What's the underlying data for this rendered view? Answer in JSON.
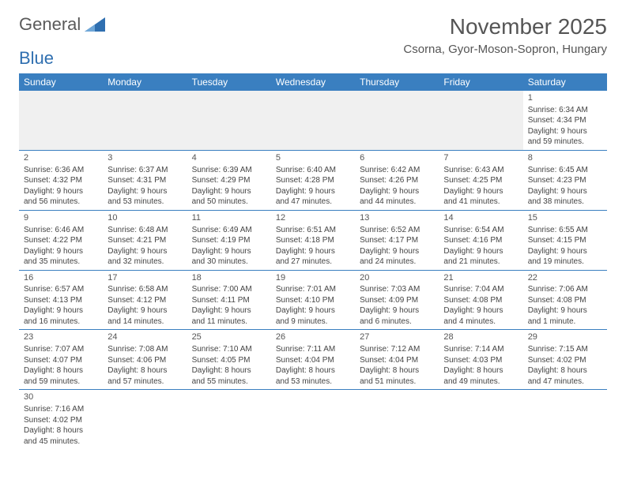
{
  "logo": {
    "word1": "General",
    "word2": "Blue",
    "triangle_color": "#2f6fb0"
  },
  "header": {
    "title": "November 2025",
    "location": "Csorna, Gyor-Moson-Sopron, Hungary"
  },
  "colors": {
    "header_bar": "#3a7fc0",
    "row_divider": "#3a7fc0",
    "empty_bg": "#f0f0f0"
  },
  "day_names": [
    "Sunday",
    "Monday",
    "Tuesday",
    "Wednesday",
    "Thursday",
    "Friday",
    "Saturday"
  ],
  "weeks": [
    [
      null,
      null,
      null,
      null,
      null,
      null,
      {
        "n": "1",
        "sunrise": "Sunrise: 6:34 AM",
        "sunset": "Sunset: 4:34 PM",
        "daylight1": "Daylight: 9 hours",
        "daylight2": "and 59 minutes."
      }
    ],
    [
      {
        "n": "2",
        "sunrise": "Sunrise: 6:36 AM",
        "sunset": "Sunset: 4:32 PM",
        "daylight1": "Daylight: 9 hours",
        "daylight2": "and 56 minutes."
      },
      {
        "n": "3",
        "sunrise": "Sunrise: 6:37 AM",
        "sunset": "Sunset: 4:31 PM",
        "daylight1": "Daylight: 9 hours",
        "daylight2": "and 53 minutes."
      },
      {
        "n": "4",
        "sunrise": "Sunrise: 6:39 AM",
        "sunset": "Sunset: 4:29 PM",
        "daylight1": "Daylight: 9 hours",
        "daylight2": "and 50 minutes."
      },
      {
        "n": "5",
        "sunrise": "Sunrise: 6:40 AM",
        "sunset": "Sunset: 4:28 PM",
        "daylight1": "Daylight: 9 hours",
        "daylight2": "and 47 minutes."
      },
      {
        "n": "6",
        "sunrise": "Sunrise: 6:42 AM",
        "sunset": "Sunset: 4:26 PM",
        "daylight1": "Daylight: 9 hours",
        "daylight2": "and 44 minutes."
      },
      {
        "n": "7",
        "sunrise": "Sunrise: 6:43 AM",
        "sunset": "Sunset: 4:25 PM",
        "daylight1": "Daylight: 9 hours",
        "daylight2": "and 41 minutes."
      },
      {
        "n": "8",
        "sunrise": "Sunrise: 6:45 AM",
        "sunset": "Sunset: 4:23 PM",
        "daylight1": "Daylight: 9 hours",
        "daylight2": "and 38 minutes."
      }
    ],
    [
      {
        "n": "9",
        "sunrise": "Sunrise: 6:46 AM",
        "sunset": "Sunset: 4:22 PM",
        "daylight1": "Daylight: 9 hours",
        "daylight2": "and 35 minutes."
      },
      {
        "n": "10",
        "sunrise": "Sunrise: 6:48 AM",
        "sunset": "Sunset: 4:21 PM",
        "daylight1": "Daylight: 9 hours",
        "daylight2": "and 32 minutes."
      },
      {
        "n": "11",
        "sunrise": "Sunrise: 6:49 AM",
        "sunset": "Sunset: 4:19 PM",
        "daylight1": "Daylight: 9 hours",
        "daylight2": "and 30 minutes."
      },
      {
        "n": "12",
        "sunrise": "Sunrise: 6:51 AM",
        "sunset": "Sunset: 4:18 PM",
        "daylight1": "Daylight: 9 hours",
        "daylight2": "and 27 minutes."
      },
      {
        "n": "13",
        "sunrise": "Sunrise: 6:52 AM",
        "sunset": "Sunset: 4:17 PM",
        "daylight1": "Daylight: 9 hours",
        "daylight2": "and 24 minutes."
      },
      {
        "n": "14",
        "sunrise": "Sunrise: 6:54 AM",
        "sunset": "Sunset: 4:16 PM",
        "daylight1": "Daylight: 9 hours",
        "daylight2": "and 21 minutes."
      },
      {
        "n": "15",
        "sunrise": "Sunrise: 6:55 AM",
        "sunset": "Sunset: 4:15 PM",
        "daylight1": "Daylight: 9 hours",
        "daylight2": "and 19 minutes."
      }
    ],
    [
      {
        "n": "16",
        "sunrise": "Sunrise: 6:57 AM",
        "sunset": "Sunset: 4:13 PM",
        "daylight1": "Daylight: 9 hours",
        "daylight2": "and 16 minutes."
      },
      {
        "n": "17",
        "sunrise": "Sunrise: 6:58 AM",
        "sunset": "Sunset: 4:12 PM",
        "daylight1": "Daylight: 9 hours",
        "daylight2": "and 14 minutes."
      },
      {
        "n": "18",
        "sunrise": "Sunrise: 7:00 AM",
        "sunset": "Sunset: 4:11 PM",
        "daylight1": "Daylight: 9 hours",
        "daylight2": "and 11 minutes."
      },
      {
        "n": "19",
        "sunrise": "Sunrise: 7:01 AM",
        "sunset": "Sunset: 4:10 PM",
        "daylight1": "Daylight: 9 hours",
        "daylight2": "and 9 minutes."
      },
      {
        "n": "20",
        "sunrise": "Sunrise: 7:03 AM",
        "sunset": "Sunset: 4:09 PM",
        "daylight1": "Daylight: 9 hours",
        "daylight2": "and 6 minutes."
      },
      {
        "n": "21",
        "sunrise": "Sunrise: 7:04 AM",
        "sunset": "Sunset: 4:08 PM",
        "daylight1": "Daylight: 9 hours",
        "daylight2": "and 4 minutes."
      },
      {
        "n": "22",
        "sunrise": "Sunrise: 7:06 AM",
        "sunset": "Sunset: 4:08 PM",
        "daylight1": "Daylight: 9 hours",
        "daylight2": "and 1 minute."
      }
    ],
    [
      {
        "n": "23",
        "sunrise": "Sunrise: 7:07 AM",
        "sunset": "Sunset: 4:07 PM",
        "daylight1": "Daylight: 8 hours",
        "daylight2": "and 59 minutes."
      },
      {
        "n": "24",
        "sunrise": "Sunrise: 7:08 AM",
        "sunset": "Sunset: 4:06 PM",
        "daylight1": "Daylight: 8 hours",
        "daylight2": "and 57 minutes."
      },
      {
        "n": "25",
        "sunrise": "Sunrise: 7:10 AM",
        "sunset": "Sunset: 4:05 PM",
        "daylight1": "Daylight: 8 hours",
        "daylight2": "and 55 minutes."
      },
      {
        "n": "26",
        "sunrise": "Sunrise: 7:11 AM",
        "sunset": "Sunset: 4:04 PM",
        "daylight1": "Daylight: 8 hours",
        "daylight2": "and 53 minutes."
      },
      {
        "n": "27",
        "sunrise": "Sunrise: 7:12 AM",
        "sunset": "Sunset: 4:04 PM",
        "daylight1": "Daylight: 8 hours",
        "daylight2": "and 51 minutes."
      },
      {
        "n": "28",
        "sunrise": "Sunrise: 7:14 AM",
        "sunset": "Sunset: 4:03 PM",
        "daylight1": "Daylight: 8 hours",
        "daylight2": "and 49 minutes."
      },
      {
        "n": "29",
        "sunrise": "Sunrise: 7:15 AM",
        "sunset": "Sunset: 4:02 PM",
        "daylight1": "Daylight: 8 hours",
        "daylight2": "and 47 minutes."
      }
    ],
    [
      {
        "n": "30",
        "sunrise": "Sunrise: 7:16 AM",
        "sunset": "Sunset: 4:02 PM",
        "daylight1": "Daylight: 8 hours",
        "daylight2": "and 45 minutes."
      },
      null,
      null,
      null,
      null,
      null,
      null
    ]
  ]
}
